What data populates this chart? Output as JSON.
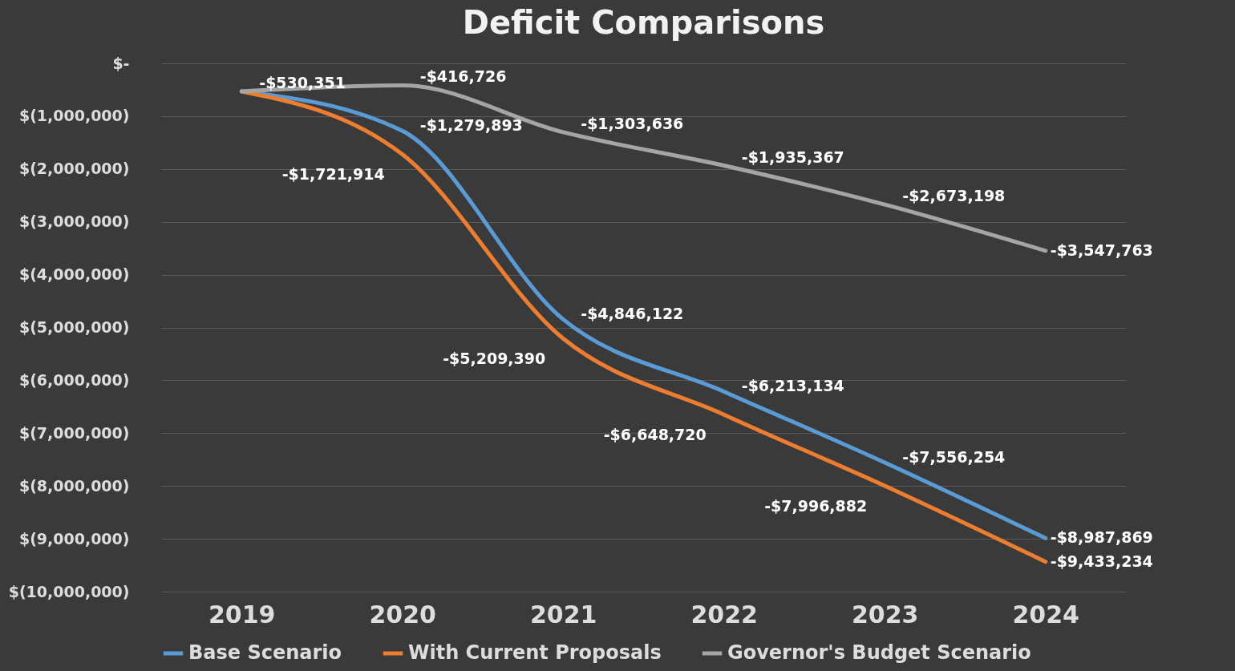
{
  "chart_data": {
    "type": "line",
    "title": "Deficit Comparisons",
    "categories": [
      "2019",
      "2020",
      "2021",
      "2022",
      "2023",
      "2024"
    ],
    "series": [
      {
        "name": "Base Scenario",
        "color": "#5b9bd5",
        "values": [
          -530351,
          -1279893,
          -4846122,
          -6213134,
          -7556254,
          -8987869
        ],
        "value_labels": [
          null,
          "-$1,279,893",
          "-$4,846,122",
          "-$6,213,134",
          "-$7,556,254",
          "-$8,987,869"
        ]
      },
      {
        "name": "With Current Proposals",
        "color": "#ed7d31",
        "values": [
          -530351,
          -1721914,
          -5209390,
          -6648720,
          -7996882,
          -9433234
        ],
        "value_labels": [
          null,
          "-$1,721,914",
          "-$5,209,390",
          "-$6,648,720",
          "-$7,996,882",
          "-$9,433,234"
        ]
      },
      {
        "name": "Governor's Budget Scenario",
        "color": "#a5a5a5",
        "values": [
          -530351,
          -416726,
          -1303636,
          -1935367,
          -2673198,
          -3547763
        ],
        "value_labels": [
          "-$530,351",
          "-$416,726",
          "-$1,303,636",
          "-$1,935,367",
          "-$2,673,198",
          "-$3,547,763"
        ]
      }
    ],
    "ylim": [
      -10000000,
      0
    ],
    "yticks": [
      {
        "value": 0,
        "label": "$-"
      },
      {
        "value": -1000000,
        "label": "$(1,000,000)"
      },
      {
        "value": -2000000,
        "label": "$(2,000,000)"
      },
      {
        "value": -3000000,
        "label": "$(3,000,000)"
      },
      {
        "value": -4000000,
        "label": "$(4,000,000)"
      },
      {
        "value": -5000000,
        "label": "$(5,000,000)"
      },
      {
        "value": -6000000,
        "label": "$(6,000,000)"
      },
      {
        "value": -7000000,
        "label": "$(7,000,000)"
      },
      {
        "value": -8000000,
        "label": "$(8,000,000)"
      },
      {
        "value": -9000000,
        "label": "$(9,000,000)"
      },
      {
        "value": -10000000,
        "label": "$(10,000,000)"
      }
    ],
    "grid": "y",
    "legend": "bottom"
  }
}
